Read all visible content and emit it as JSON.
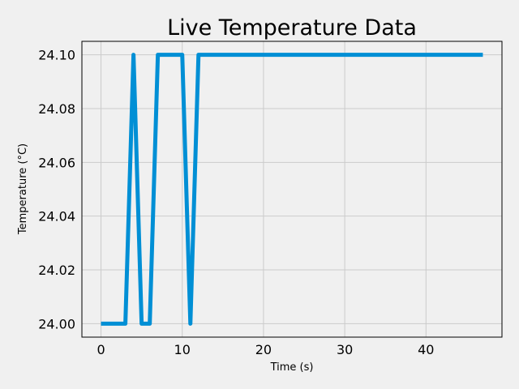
{
  "chart_data": {
    "type": "line",
    "title": "Live Temperature Data",
    "xlabel": "Time (s)",
    "ylabel": "Temperature (°C)",
    "xlim": [
      -2.35,
      49.35
    ],
    "ylim": [
      23.995,
      24.105
    ],
    "xticks": [
      0,
      10,
      20,
      30,
      40
    ],
    "xtick_labels": [
      "0",
      "10",
      "20",
      "30",
      "40"
    ],
    "yticks": [
      24.0,
      24.02,
      24.04,
      24.06,
      24.08,
      24.1
    ],
    "ytick_labels": [
      "24.00",
      "24.02",
      "24.04",
      "24.06",
      "24.08",
      "24.10"
    ],
    "grid": true,
    "line_color": "#008fd5",
    "background_color": "#f0f0f0",
    "grid_color": "#cbcbcb",
    "series": [
      {
        "x": [
          0,
          1,
          2,
          3,
          4,
          5,
          6,
          7,
          8,
          9,
          10,
          11,
          12,
          13,
          14,
          15,
          16,
          17,
          18,
          19,
          20,
          21,
          22,
          23,
          24,
          25,
          26,
          27,
          28,
          29,
          30,
          31,
          32,
          33,
          34,
          35,
          36,
          37,
          38,
          39,
          40,
          41,
          42,
          43,
          44,
          45,
          46,
          47
        ],
        "values": [
          24.0,
          24.0,
          24.0,
          24.0,
          24.1,
          24.0,
          24.0,
          24.1,
          24.1,
          24.1,
          24.1,
          24.0,
          24.1,
          24.1,
          24.1,
          24.1,
          24.1,
          24.1,
          24.1,
          24.1,
          24.1,
          24.1,
          24.1,
          24.1,
          24.1,
          24.1,
          24.1,
          24.1,
          24.1,
          24.1,
          24.1,
          24.1,
          24.1,
          24.1,
          24.1,
          24.1,
          24.1,
          24.1,
          24.1,
          24.1,
          24.1,
          24.1,
          24.1,
          24.1,
          24.1,
          24.1,
          24.1,
          24.1
        ]
      }
    ]
  }
}
